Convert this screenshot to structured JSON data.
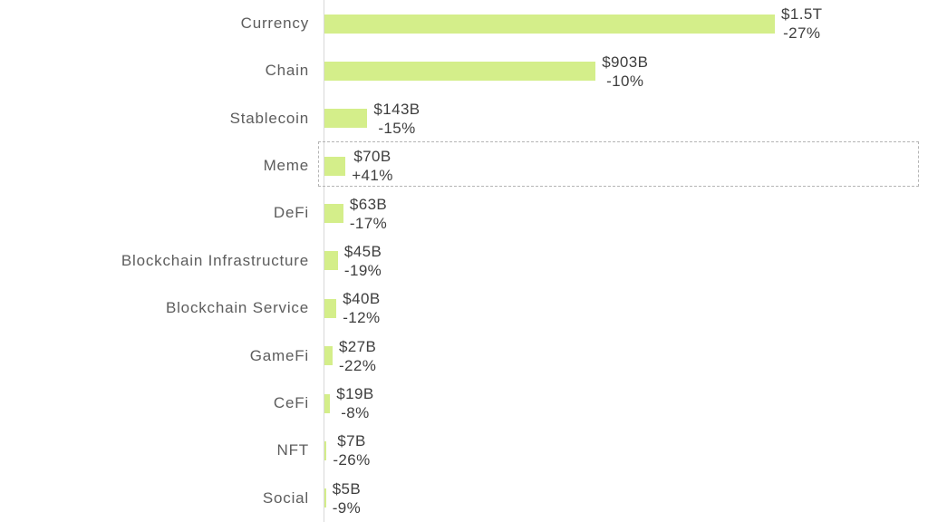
{
  "chart_data": {
    "type": "bar",
    "orientation": "horizontal",
    "title": "",
    "xlabel": "",
    "ylabel": "",
    "grid": false,
    "legend": false,
    "xlim_billions_usd": [
      0,
      1500
    ],
    "categories": [
      "Currency",
      "Chain",
      "Stablecoin",
      "Meme",
      "DeFi",
      "Blockchain Infrastructure",
      "Blockchain Service",
      "GameFi",
      "CeFi",
      "NFT",
      "Social"
    ],
    "values_billions_usd": [
      1500,
      903,
      143,
      70,
      63,
      45,
      40,
      27,
      19,
      7,
      5
    ],
    "value_labels": [
      "$1.5T",
      "$903B",
      "$143B",
      "$70B",
      "$63B",
      "$45B",
      "$40B",
      "$27B",
      "$19B",
      "$7B",
      "$5B"
    ],
    "change_labels": [
      "-27%",
      "-10%",
      "-15%",
      "+41%",
      "-17%",
      "-19%",
      "-12%",
      "-22%",
      "-8%",
      "-26%",
      "-9%"
    ],
    "highlighted_category": "Meme",
    "highlighted_index": 3
  },
  "colors": {
    "background": "#ffffff",
    "bar_fill": "#d4ee8a",
    "category_label": "#5d5d5d",
    "value_label": "#3e3e3e",
    "axis_line": "#d9d9d9",
    "highlight_border": "#b5b5b5"
  }
}
